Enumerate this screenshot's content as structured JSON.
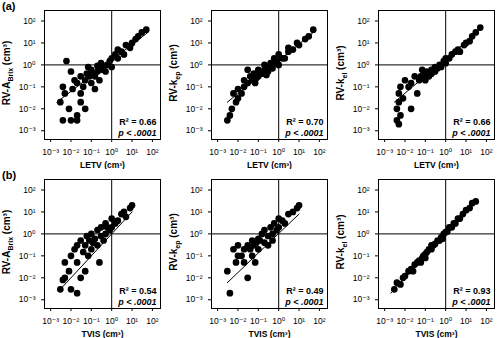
{
  "chart_data": [
    {
      "type": "scatter",
      "panel_label": "(a)",
      "x_label": "LETV (cm³)",
      "y_label": [
        "RV-A",
        "Brix",
        "(cm³)"
      ],
      "log": true,
      "color": "#000000",
      "marker": "circle",
      "xlim": [
        0.0005,
        250
      ],
      "ylim": [
        0.0004,
        300
      ],
      "xticks": [
        {
          "value": 0.001,
          "label": "10⁻³"
        },
        {
          "value": 0.01,
          "label": "10⁻²"
        },
        {
          "value": 0.1,
          "label": "10⁻¹"
        },
        {
          "value": 1,
          "label": "10⁰"
        },
        {
          "value": 10,
          "label": "10¹"
        },
        {
          "value": 100,
          "label": "10²"
        }
      ],
      "yticks": [
        {
          "value": 0.001,
          "label": "10⁻³"
        },
        {
          "value": 0.01,
          "label": "10⁻²"
        },
        {
          "value": 0.1,
          "label": "10⁻¹"
        },
        {
          "value": 1,
          "label": "10⁰"
        },
        {
          "value": 10,
          "label": "10¹"
        },
        {
          "value": 100,
          "label": "10²"
        }
      ],
      "reference_lines": {
        "x": 1,
        "y": 1
      },
      "fit_line": {
        "x": [
          0.002,
          60
        ],
        "y": [
          0.02,
          30
        ]
      },
      "annotations": [
        "R² = 0.66",
        "p < .0001"
      ],
      "x": [
        0.003,
        0.004,
        0.005,
        0.006,
        0.008,
        0.01,
        0.012,
        0.015,
        0.02,
        0.02,
        0.03,
        0.03,
        0.04,
        0.05,
        0.05,
        0.06,
        0.08,
        0.1,
        0.1,
        0.12,
        0.15,
        0.2,
        0.2,
        0.25,
        0.3,
        0.3,
        0.4,
        0.5,
        0.6,
        0.8,
        1,
        1,
        1.5,
        2,
        2,
        3,
        4,
        5,
        8,
        10,
        15,
        20,
        30,
        50,
        0.004,
        0.01,
        0.02,
        0.03,
        0.07,
        0.15
      ],
      "y": [
        0.02,
        0.003,
        0.05,
        1.5,
        0.01,
        0.003,
        0.08,
        0.2,
        0.15,
        0.005,
        0.3,
        0.05,
        0.1,
        0.2,
        0.01,
        0.4,
        0.3,
        0.15,
        0.6,
        0.4,
        0.3,
        0.5,
        0.9,
        0.2,
        0.6,
        1.2,
        0.8,
        0.5,
        1,
        1.5,
        2,
        0.8,
        3,
        2,
        5,
        4,
        3,
        8,
        6,
        10,
        15,
        20,
        30,
        40,
        0.1,
        0.5,
        0.003,
        0.02,
        0.8,
        0.08
      ]
    },
    {
      "type": "scatter",
      "x_label": "LETV (cm³)",
      "y_label": [
        "RV-k",
        "ep",
        "(cm³)"
      ],
      "log": true,
      "color": "#000000",
      "marker": "circle",
      "xlim": [
        0.0005,
        250
      ],
      "ylim": [
        0.0004,
        300
      ],
      "xticks": [
        {
          "value": 0.001,
          "label": "10⁻³"
        },
        {
          "value": 0.01,
          "label": "10⁻²"
        },
        {
          "value": 0.1,
          "label": "10⁻¹"
        },
        {
          "value": 1,
          "label": "10⁰"
        },
        {
          "value": 10,
          "label": "10¹"
        },
        {
          "value": 100,
          "label": "10²"
        }
      ],
      "yticks": [
        {
          "value": 0.001,
          "label": "10⁻³"
        },
        {
          "value": 0.01,
          "label": "10⁻²"
        },
        {
          "value": 0.1,
          "label": "10⁻¹"
        },
        {
          "value": 1,
          "label": "10⁰"
        },
        {
          "value": 10,
          "label": "10¹"
        },
        {
          "value": 100,
          "label": "10²"
        }
      ],
      "reference_lines": {
        "x": 1,
        "y": 1
      },
      "fit_line": {
        "x": [
          0.003,
          50
        ],
        "y": [
          0.02,
          30
        ]
      },
      "annotations": [
        "R² = 0.70",
        "p < .0001"
      ],
      "x": [
        0.004,
        0.005,
        0.006,
        0.008,
        0.01,
        0.01,
        0.015,
        0.02,
        0.02,
        0.03,
        0.04,
        0.05,
        0.06,
        0.08,
        0.1,
        0.1,
        0.12,
        0.15,
        0.2,
        0.2,
        0.3,
        0.3,
        0.4,
        0.5,
        0.5,
        0.6,
        0.8,
        1,
        1,
        1.5,
        2,
        3,
        3,
        5,
        8,
        10,
        20,
        30,
        50,
        0.003,
        0.03,
        0.07,
        0.25,
        0.7
      ],
      "y": [
        0.005,
        0.01,
        0.05,
        0.02,
        0.03,
        0.08,
        0.05,
        0.1,
        0.2,
        0.15,
        0.3,
        0.2,
        0.4,
        0.25,
        0.3,
        0.6,
        0.5,
        0.4,
        0.6,
        1,
        0.8,
        0.5,
        1.2,
        1,
        0.7,
        2,
        1.5,
        1,
        3,
        2,
        2,
        4,
        6,
        5,
        10,
        8,
        15,
        20,
        40,
        0.003,
        0.6,
        0.15,
        0.35,
        1.5
      ]
    },
    {
      "type": "scatter",
      "x_label": "LETV (cm³)",
      "y_label": [
        "RV-k",
        "el",
        "(cm³)"
      ],
      "log": true,
      "color": "#000000",
      "marker": "circle",
      "xlim": [
        0.0005,
        250
      ],
      "ylim": [
        0.0004,
        300
      ],
      "xticks": [
        {
          "value": 0.001,
          "label": "10⁻³"
        },
        {
          "value": 0.01,
          "label": "10⁻²"
        },
        {
          "value": 0.1,
          "label": "10⁻¹"
        },
        {
          "value": 1,
          "label": "10⁰"
        },
        {
          "value": 10,
          "label": "10¹"
        },
        {
          "value": 100,
          "label": "10²"
        }
      ],
      "yticks": [
        {
          "value": 0.001,
          "label": "10⁻³"
        },
        {
          "value": 0.01,
          "label": "10⁻²"
        },
        {
          "value": 0.1,
          "label": "10⁻¹"
        },
        {
          "value": 1,
          "label": "10⁰"
        },
        {
          "value": 10,
          "label": "10¹"
        },
        {
          "value": 100,
          "label": "10²"
        }
      ],
      "reference_lines": {
        "x": 1,
        "y": 1
      },
      "fit_line": {
        "x": [
          0.003,
          50
        ],
        "y": [
          0.02,
          40
        ]
      },
      "annotations": [
        "R² = 0.66",
        "p < .0001"
      ],
      "x": [
        0.004,
        0.004,
        0.005,
        0.005,
        0.006,
        0.006,
        0.008,
        0.01,
        0.015,
        0.02,
        0.03,
        0.04,
        0.05,
        0.06,
        0.08,
        0.1,
        0.1,
        0.12,
        0.15,
        0.2,
        0.2,
        0.3,
        0.3,
        0.4,
        0.5,
        0.6,
        0.8,
        1,
        1,
        1.5,
        2,
        3,
        4,
        5,
        8,
        10,
        15,
        20,
        30,
        50,
        0.005,
        0.02,
        0.07
      ],
      "y": [
        0.003,
        0.01,
        0.02,
        0.05,
        0.1,
        0.005,
        0.03,
        0.2,
        0.1,
        0.15,
        0.3,
        0.05,
        0.2,
        0.3,
        0.25,
        0.4,
        0.2,
        0.5,
        0.3,
        0.6,
        0.4,
        0.5,
        0.8,
        0.7,
        1,
        0.8,
        1.5,
        1.2,
        2,
        2,
        3,
        4,
        5,
        4,
        8,
        10,
        12,
        20,
        30,
        50,
        0.002,
        0.01,
        0.6
      ]
    },
    {
      "type": "scatter",
      "panel_label": "(b)",
      "x_label": "TVIS (cm³)",
      "y_label": [
        "RV-A",
        "Brix",
        "(cm³)"
      ],
      "log": true,
      "color": "#000000",
      "marker": "circle",
      "xlim": [
        0.0005,
        250
      ],
      "ylim": [
        0.0004,
        300
      ],
      "xticks": [
        {
          "value": 0.001,
          "label": "10⁻³"
        },
        {
          "value": 0.01,
          "label": "10⁻²"
        },
        {
          "value": 0.1,
          "label": "10⁻¹"
        },
        {
          "value": 1,
          "label": "10⁰"
        },
        {
          "value": 10,
          "label": "10¹"
        },
        {
          "value": 100,
          "label": "10²"
        }
      ],
      "yticks": [
        {
          "value": 0.001,
          "label": "10⁻³"
        },
        {
          "value": 0.01,
          "label": "10⁻²"
        },
        {
          "value": 0.1,
          "label": "10⁻¹"
        },
        {
          "value": 1,
          "label": "10⁰"
        },
        {
          "value": 10,
          "label": "10¹"
        },
        {
          "value": 100,
          "label": "10²"
        }
      ],
      "reference_lines": {
        "x": 1,
        "y": 1
      },
      "fit_line": {
        "x": [
          0.003,
          10
        ],
        "y": [
          0.003,
          10
        ]
      },
      "annotations": [
        "R² = 0.54",
        "p < .0001"
      ],
      "x": [
        0.003,
        0.005,
        0.005,
        0.008,
        0.01,
        0.01,
        0.015,
        0.02,
        0.02,
        0.03,
        0.03,
        0.04,
        0.05,
        0.05,
        0.06,
        0.08,
        0.1,
        0.1,
        0.12,
        0.15,
        0.2,
        0.2,
        0.3,
        0.3,
        0.4,
        0.5,
        0.5,
        0.6,
        0.8,
        1,
        1,
        1.5,
        2,
        3,
        4,
        5,
        8,
        10,
        0.004,
        0.02,
        0.07,
        0.25
      ],
      "y": [
        0.003,
        0.01,
        0.05,
        0.02,
        0.003,
        0.1,
        0.2,
        0.05,
        0.3,
        0.01,
        0.5,
        0.15,
        0.3,
        0.02,
        0.8,
        0.5,
        0.2,
        1,
        0.4,
        0.6,
        1.5,
        0.3,
        0.8,
        2,
        0.5,
        1,
        3,
        2,
        1.5,
        5,
        2,
        3,
        4,
        8,
        10,
        6,
        15,
        20,
        0.008,
        0.002,
        0.1,
        0.05
      ]
    },
    {
      "type": "scatter",
      "x_label": "TVIS (cm³)",
      "y_label": [
        "RV-k",
        "ep",
        "(cm³)"
      ],
      "log": true,
      "color": "#000000",
      "marker": "circle",
      "xlim": [
        0.0005,
        250
      ],
      "ylim": [
        0.0004,
        300
      ],
      "xticks": [
        {
          "value": 0.001,
          "label": "10⁻³"
        },
        {
          "value": 0.01,
          "label": "10⁻²"
        },
        {
          "value": 0.1,
          "label": "10⁻¹"
        },
        {
          "value": 1,
          "label": "10⁰"
        },
        {
          "value": 10,
          "label": "10¹"
        },
        {
          "value": 100,
          "label": "10²"
        }
      ],
      "yticks": [
        {
          "value": 0.001,
          "label": "10⁻³"
        },
        {
          "value": 0.01,
          "label": "10⁻²"
        },
        {
          "value": 0.1,
          "label": "10⁻¹"
        },
        {
          "value": 1,
          "label": "10⁰"
        },
        {
          "value": 10,
          "label": "10¹"
        },
        {
          "value": 100,
          "label": "10²"
        }
      ],
      "reference_lines": {
        "x": 1,
        "y": 1
      },
      "fit_line": {
        "x": [
          0.003,
          10
        ],
        "y": [
          0.006,
          8
        ]
      },
      "annotations": [
        "R² = 0.49",
        "p < .0001"
      ],
      "x": [
        0.004,
        0.006,
        0.008,
        0.01,
        0.01,
        0.015,
        0.02,
        0.02,
        0.03,
        0.04,
        0.05,
        0.05,
        0.06,
        0.08,
        0.1,
        0.1,
        0.12,
        0.15,
        0.2,
        0.2,
        0.3,
        0.3,
        0.4,
        0.5,
        0.5,
        0.6,
        0.8,
        1,
        1,
        1.5,
        2,
        3,
        5,
        8,
        10,
        0.003,
        0.03,
        0.07
      ],
      "y": [
        0.002,
        0.2,
        0.05,
        0.1,
        0.3,
        0.1,
        0.2,
        0.05,
        0.3,
        0.2,
        0.5,
        0.1,
        0.3,
        0.4,
        0.6,
        0.2,
        0.5,
        1,
        0.4,
        1.5,
        0.8,
        0.3,
        2,
        1,
        0.5,
        3,
        1.5,
        2,
        5,
        4,
        3,
        8,
        10,
        15,
        20,
        0.02,
        0.01,
        0.05
      ]
    },
    {
      "type": "scatter",
      "x_label": "TVIS (cm³)",
      "y_label": [
        "RV-k",
        "el",
        "(cm³)"
      ],
      "log": true,
      "color": "#000000",
      "marker": "circle",
      "xlim": [
        0.0005,
        250
      ],
      "ylim": [
        0.0004,
        300
      ],
      "xticks": [
        {
          "value": 0.001,
          "label": "10⁻³"
        },
        {
          "value": 0.01,
          "label": "10⁻²"
        },
        {
          "value": 0.1,
          "label": "10⁻¹"
        },
        {
          "value": 1,
          "label": "10⁰"
        },
        {
          "value": 10,
          "label": "10¹"
        },
        {
          "value": 100,
          "label": "10²"
        }
      ],
      "yticks": [
        {
          "value": 0.001,
          "label": "10⁻³"
        },
        {
          "value": 0.01,
          "label": "10⁻²"
        },
        {
          "value": 0.1,
          "label": "10⁻¹"
        },
        {
          "value": 1,
          "label": "10⁰"
        },
        {
          "value": 10,
          "label": "10¹"
        },
        {
          "value": 100,
          "label": "10²"
        }
      ],
      "reference_lines": {
        "x": 1,
        "y": 1
      },
      "fit_line": {
        "x": [
          0.002,
          30
        ],
        "y": [
          0.002,
          30
        ]
      },
      "annotations": [
        "R² = 0.93",
        "p < .0001"
      ],
      "x": [
        0.003,
        0.004,
        0.006,
        0.008,
        0.01,
        0.015,
        0.02,
        0.025,
        0.03,
        0.04,
        0.05,
        0.06,
        0.07,
        0.08,
        0.1,
        0.1,
        0.12,
        0.15,
        0.2,
        0.2,
        0.25,
        0.3,
        0.4,
        0.5,
        0.6,
        0.7,
        0.8,
        1,
        1.2,
        1.5,
        2,
        2.5,
        3,
        4,
        5,
        7,
        10,
        15,
        20,
        30
      ],
      "y": [
        0.003,
        0.006,
        0.005,
        0.01,
        0.012,
        0.02,
        0.025,
        0.02,
        0.04,
        0.05,
        0.06,
        0.05,
        0.08,
        0.1,
        0.12,
        0.08,
        0.15,
        0.2,
        0.2,
        0.3,
        0.3,
        0.35,
        0.5,
        0.5,
        0.7,
        0.6,
        1,
        1.2,
        1.3,
        2,
        2,
        3,
        3,
        5,
        5,
        8,
        12,
        15,
        25,
        30
      ]
    }
  ]
}
